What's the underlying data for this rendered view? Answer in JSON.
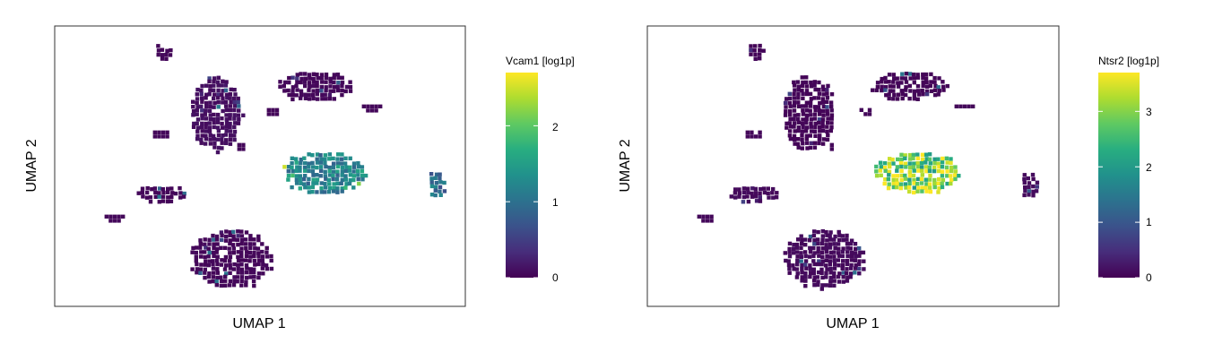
{
  "chart_data": [
    {
      "type": "heatmap",
      "title": "",
      "xlabel": "UMAP 1",
      "ylabel": "UMAP 2",
      "colorbar": {
        "title": "Vcam1 [log1p]",
        "range": [
          0,
          2.7
        ],
        "ticks": [
          0,
          1,
          2
        ],
        "colormap": [
          "#440154",
          "#472d7b",
          "#3b528b",
          "#2c728e",
          "#21918c",
          "#28ae80",
          "#5ec962",
          "#addc30",
          "#fde725"
        ]
      },
      "clusters": [
        {
          "name": "top-left small",
          "mean_expression": 0.05
        },
        {
          "name": "upper-left large",
          "mean_expression": 0.1
        },
        {
          "name": "upper-middle arcs",
          "mean_expression": 0.05
        },
        {
          "name": "central",
          "mean_expression": 1.2
        },
        {
          "name": "right small",
          "mean_expression": 1.0
        },
        {
          "name": "left middle",
          "mean_expression": 0.05
        },
        {
          "name": "bottom large",
          "mean_expression": 0.05
        }
      ],
      "grid": false
    },
    {
      "type": "heatmap",
      "title": "",
      "xlabel": "UMAP 1",
      "ylabel": "UMAP 2",
      "colorbar": {
        "title": "Ntsr2 [log1p]",
        "range": [
          0,
          3.7
        ],
        "ticks": [
          0,
          1,
          2,
          3
        ],
        "colormap": [
          "#440154",
          "#472d7b",
          "#3b528b",
          "#2c728e",
          "#21918c",
          "#28ae80",
          "#5ec962",
          "#addc30",
          "#fde725"
        ]
      },
      "clusters": [
        {
          "name": "top-left small",
          "mean_expression": 0.05
        },
        {
          "name": "upper-left large",
          "mean_expression": 0.05
        },
        {
          "name": "upper-middle arcs",
          "mean_expression": 0.05
        },
        {
          "name": "central",
          "mean_expression": 3.0
        },
        {
          "name": "right small",
          "mean_expression": 0.1
        },
        {
          "name": "left middle",
          "mean_expression": 0.1
        },
        {
          "name": "bottom large",
          "mean_expression": 0.1
        }
      ],
      "grid": false
    }
  ]
}
